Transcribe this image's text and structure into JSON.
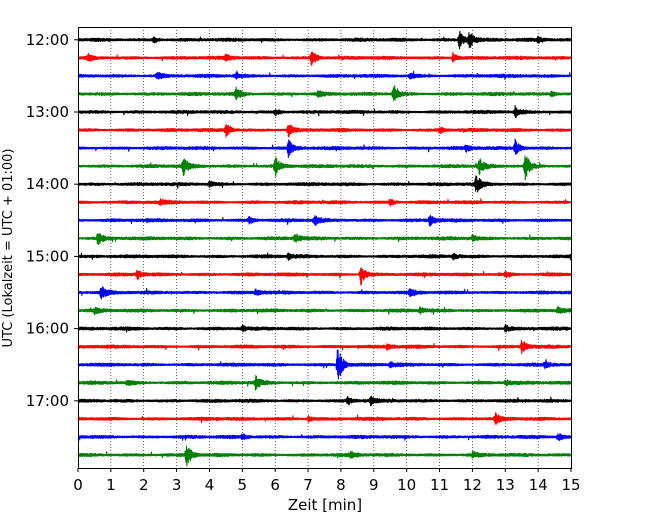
{
  "chart_data": {
    "type": "line",
    "title": "",
    "xlabel": "Zeit  [min]",
    "ylabel": "UTC (Lokalzeit = UTC + 01:00)",
    "xlim": [
      0,
      15
    ],
    "x_ticks": [
      "0",
      "1",
      "2",
      "3",
      "4",
      "5",
      "6",
      "7",
      "8",
      "9",
      "10",
      "11",
      "12",
      "13",
      "14",
      "15"
    ],
    "y_tick_labels": [
      "12:00",
      "13:00",
      "14:00",
      "15:00",
      "16:00",
      "17:00"
    ],
    "grid": "vertical dotted at each minute",
    "trace_colors": [
      "#000000",
      "#ff0000",
      "#0000ff",
      "#008000"
    ],
    "series": [
      {
        "start": "12:00",
        "color": "#000000",
        "events": [
          {
            "t": 11.6,
            "a": 9
          },
          {
            "t": 11.9,
            "a": 10
          },
          {
            "t": 14.0,
            "a": 3
          },
          {
            "t": 2.3,
            "a": 3
          }
        ]
      },
      {
        "start": "12:15",
        "color": "#ff0000",
        "events": [
          {
            "t": 7.1,
            "a": 9
          },
          {
            "t": 11.4,
            "a": 5
          },
          {
            "t": 0.3,
            "a": 3
          },
          {
            "t": 4.5,
            "a": 3
          }
        ]
      },
      {
        "start": "12:30",
        "color": "#0000ff",
        "events": [
          {
            "t": 2.4,
            "a": 4
          },
          {
            "t": 4.8,
            "a": 3
          },
          {
            "t": 10.1,
            "a": 3
          }
        ]
      },
      {
        "start": "12:45",
        "color": "#008000",
        "events": [
          {
            "t": 4.8,
            "a": 7
          },
          {
            "t": 9.6,
            "a": 8
          },
          {
            "t": 7.3,
            "a": 3
          },
          {
            "t": 14.4,
            "a": 3
          }
        ]
      },
      {
        "start": "13:00",
        "color": "#000000",
        "events": [
          {
            "t": 13.3,
            "a": 5
          },
          {
            "t": 6.0,
            "a": 3
          }
        ]
      },
      {
        "start": "13:15",
        "color": "#ff0000",
        "events": [
          {
            "t": 4.5,
            "a": 7
          },
          {
            "t": 6.4,
            "a": 7
          },
          {
            "t": 11.0,
            "a": 3
          }
        ]
      },
      {
        "start": "13:30",
        "color": "#0000ff",
        "events": [
          {
            "t": 6.4,
            "a": 8
          },
          {
            "t": 13.3,
            "a": 8
          },
          {
            "t": 11.8,
            "a": 3
          }
        ]
      },
      {
        "start": "13:45",
        "color": "#008000",
        "events": [
          {
            "t": 3.2,
            "a": 9
          },
          {
            "t": 6.0,
            "a": 11
          },
          {
            "t": 12.2,
            "a": 8
          },
          {
            "t": 13.6,
            "a": 14
          }
        ]
      },
      {
        "start": "14:00",
        "color": "#000000",
        "events": [
          {
            "t": 12.1,
            "a": 10
          },
          {
            "t": 4.0,
            "a": 3
          }
        ]
      },
      {
        "start": "14:15",
        "color": "#ff0000",
        "events": [
          {
            "t": 2.5,
            "a": 3
          },
          {
            "t": 9.5,
            "a": 3
          }
        ]
      },
      {
        "start": "14:30",
        "color": "#0000ff",
        "events": [
          {
            "t": 7.2,
            "a": 5
          },
          {
            "t": 10.7,
            "a": 6
          },
          {
            "t": 5.2,
            "a": 3
          }
        ]
      },
      {
        "start": "14:45",
        "color": "#008000",
        "events": [
          {
            "t": 0.6,
            "a": 7
          },
          {
            "t": 6.6,
            "a": 5
          },
          {
            "t": 12.0,
            "a": 3
          }
        ]
      },
      {
        "start": "15:00",
        "color": "#000000",
        "events": [
          {
            "t": 6.4,
            "a": 3
          },
          {
            "t": 11.4,
            "a": 3
          },
          {
            "t": 15.0,
            "a": 3
          }
        ]
      },
      {
        "start": "15:15",
        "color": "#ff0000",
        "events": [
          {
            "t": 1.8,
            "a": 5
          },
          {
            "t": 8.6,
            "a": 11
          },
          {
            "t": 13.0,
            "a": 3
          }
        ]
      },
      {
        "start": "15:30",
        "color": "#0000ff",
        "events": [
          {
            "t": 0.7,
            "a": 7
          },
          {
            "t": 10.1,
            "a": 4
          },
          {
            "t": 5.4,
            "a": 3
          }
        ]
      },
      {
        "start": "15:45",
        "color": "#008000",
        "events": [
          {
            "t": 0.5,
            "a": 3
          },
          {
            "t": 10.4,
            "a": 3
          },
          {
            "t": 14.6,
            "a": 3
          }
        ]
      },
      {
        "start": "16:00",
        "color": "#000000",
        "events": [
          {
            "t": 5.0,
            "a": 3
          },
          {
            "t": 13.0,
            "a": 3
          }
        ]
      },
      {
        "start": "16:15",
        "color": "#ff0000",
        "events": [
          {
            "t": 13.5,
            "a": 7
          },
          {
            "t": 9.4,
            "a": 3
          }
        ]
      },
      {
        "start": "16:30",
        "color": "#0000ff",
        "events": [
          {
            "t": 7.9,
            "a": 20
          },
          {
            "t": 9.5,
            "a": 3
          },
          {
            "t": 14.2,
            "a": 3
          }
        ]
      },
      {
        "start": "16:45",
        "color": "#008000",
        "events": [
          {
            "t": 5.4,
            "a": 7
          },
          {
            "t": 1.5,
            "a": 3
          },
          {
            "t": 13.0,
            "a": 3
          }
        ]
      },
      {
        "start": "17:00",
        "color": "#000000",
        "events": [
          {
            "t": 8.2,
            "a": 4
          },
          {
            "t": 8.9,
            "a": 4
          }
        ]
      },
      {
        "start": "17:15",
        "color": "#ff0000",
        "events": [
          {
            "t": 12.7,
            "a": 5
          },
          {
            "t": 7.0,
            "a": 3
          }
        ]
      },
      {
        "start": "17:30",
        "color": "#0000ff",
        "events": [
          {
            "t": 14.6,
            "a": 4
          },
          {
            "t": 5.0,
            "a": 3
          }
        ]
      },
      {
        "start": "17:45",
        "color": "#008000",
        "events": [
          {
            "t": 3.3,
            "a": 12
          },
          {
            "t": 8.3,
            "a": 3
          },
          {
            "t": 12.0,
            "a": 3
          }
        ]
      }
    ]
  }
}
